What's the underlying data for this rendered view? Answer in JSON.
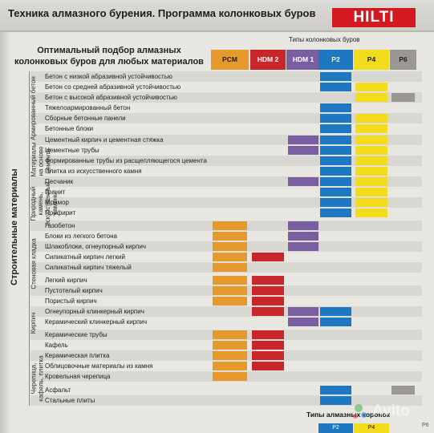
{
  "header": {
    "title": "Техника алмазного бурения. Программа колонковых буров",
    "logo": "HILTI"
  },
  "intro": {
    "text": "Оптимальный подбор алмазных колонковых буров для любых материалов"
  },
  "types_label": "Типы колонковых буров",
  "main_label": "Строительные материалы",
  "colors": {
    "PCM": "#e69a2e",
    "HDM2": "#c8262a",
    "HDM1": "#7a5fa0",
    "P2": "#1d78c1",
    "P4": "#f2dc1c",
    "P6": "#9b9894"
  },
  "columns": [
    {
      "id": "PCM",
      "label": "PCM"
    },
    {
      "id": "HDM2",
      "label": "HDM 2"
    },
    {
      "id": "HDM1",
      "label": "HDM 1"
    },
    {
      "id": "P2",
      "label": "P2"
    },
    {
      "id": "P4",
      "label": "P4"
    },
    {
      "id": "P6",
      "label": "P6"
    }
  ],
  "groups": [
    {
      "label": "Армированный бетон",
      "rows": [
        0,
        6
      ]
    },
    {
      "label": "Материалы на основе цемента",
      "rows": [
        7,
        9
      ]
    },
    {
      "label": "Природный камень, искусственный камень",
      "rows": [
        10,
        14
      ]
    },
    {
      "label": "Стеновая кладка",
      "rows": [
        15,
        20
      ]
    },
    {
      "label": "Кирпич",
      "rows": [
        21,
        25
      ]
    },
    {
      "label": "Черепица, кафель, плитка",
      "rows": [
        26,
        30
      ]
    }
  ],
  "rows": [
    {
      "label": "Бетон с низкой абразивной устойчивостью",
      "cells": [
        "P2"
      ]
    },
    {
      "label": "Бетон со средней абразивной устойчивостью",
      "cells": [
        "P2",
        "P4"
      ]
    },
    {
      "label": "Бетон с высокой абразивной устойчивостью",
      "cells": [
        "P4",
        "P6"
      ]
    },
    {
      "label": "Тяжелоармированный бетон",
      "cells": [
        "P2"
      ]
    },
    {
      "label": "Сборные бетонные панели",
      "cells": [
        "P2",
        "P4"
      ]
    },
    {
      "label": "Бетонные блоки",
      "cells": [
        "P2",
        "P4"
      ]
    },
    {
      "label": "Цементный кирпич и цементная стяжка",
      "cells": [
        "HDM1",
        "P2",
        "P4"
      ]
    },
    {
      "label": "Цементные трубы",
      "cells": [
        "HDM1",
        "P2",
        "P4"
      ]
    },
    {
      "label": "Формированные трубы из расщепляющегося цемента",
      "cells": [
        "P2",
        "P4"
      ]
    },
    {
      "label": "Плитка из искусственного камня",
      "cells": [
        "P2",
        "P4"
      ]
    },
    {
      "label": "Песчаник",
      "cells": [
        "HDM1",
        "P2",
        "P4"
      ]
    },
    {
      "label": "Гранит",
      "cells": [
        "P2",
        "P4"
      ]
    },
    {
      "label": "Мрамор",
      "cells": [
        "P2",
        "P4"
      ]
    },
    {
      "label": "Порфирит",
      "cells": [
        "P2",
        "P4"
      ]
    },
    {
      "label": "Газобетон",
      "cells": [
        "PCM",
        "HDM1"
      ]
    },
    {
      "label": "Блоки из легкого бетона",
      "cells": [
        "PCM",
        "HDM1"
      ]
    },
    {
      "label": "Шлакоблоки, огнеупорный кирпич",
      "cells": [
        "PCM",
        "HDM1"
      ]
    },
    {
      "label": "Силикатный кирпич легкий",
      "cells": [
        "PCM",
        "HDM2"
      ]
    },
    {
      "label": "Силикатный кирпич тяжелый",
      "cells": [
        "PCM"
      ]
    },
    {
      "label": "Легкий кирпич",
      "cells": [
        "PCM",
        "HDM2"
      ]
    },
    {
      "label": "Пустотелый кирпич",
      "cells": [
        "PCM",
        "HDM2"
      ]
    },
    {
      "label": "Пористый кирпич",
      "cells": [
        "PCM",
        "HDM2"
      ]
    },
    {
      "label": "Огнеупорный клинкерный кирпич",
      "cells": [
        "HDM2",
        "HDM1",
        "P2"
      ]
    },
    {
      "label": "Керамический клинкерный кирпич",
      "cells": [
        "HDM1",
        "P2"
      ]
    },
    {
      "label": "Керамические трубы",
      "cells": [
        "PCM",
        "HDM2"
      ]
    },
    {
      "label": "Кафель",
      "cells": [
        "PCM",
        "HDM2"
      ]
    },
    {
      "label": "Керамическая плитка",
      "cells": [
        "PCM",
        "HDM2"
      ]
    },
    {
      "label": "Облицовочные материалы из камня",
      "cells": [
        "PCM",
        "HDM2"
      ]
    },
    {
      "label": "Кровельная черепица",
      "cells": [
        "PCM"
      ]
    },
    {
      "label": "Асфальт",
      "cells": [
        "P2",
        "P6"
      ]
    },
    {
      "label": "Стальные плиты",
      "cells": [
        "P2"
      ]
    }
  ],
  "bottom_label": "Типы алмазных коронок",
  "page_code": "P6",
  "bottom_tabs": [
    {
      "label": "P2"
    },
    {
      "label": "P4"
    }
  ],
  "watermark": {
    "text": "Avito"
  }
}
